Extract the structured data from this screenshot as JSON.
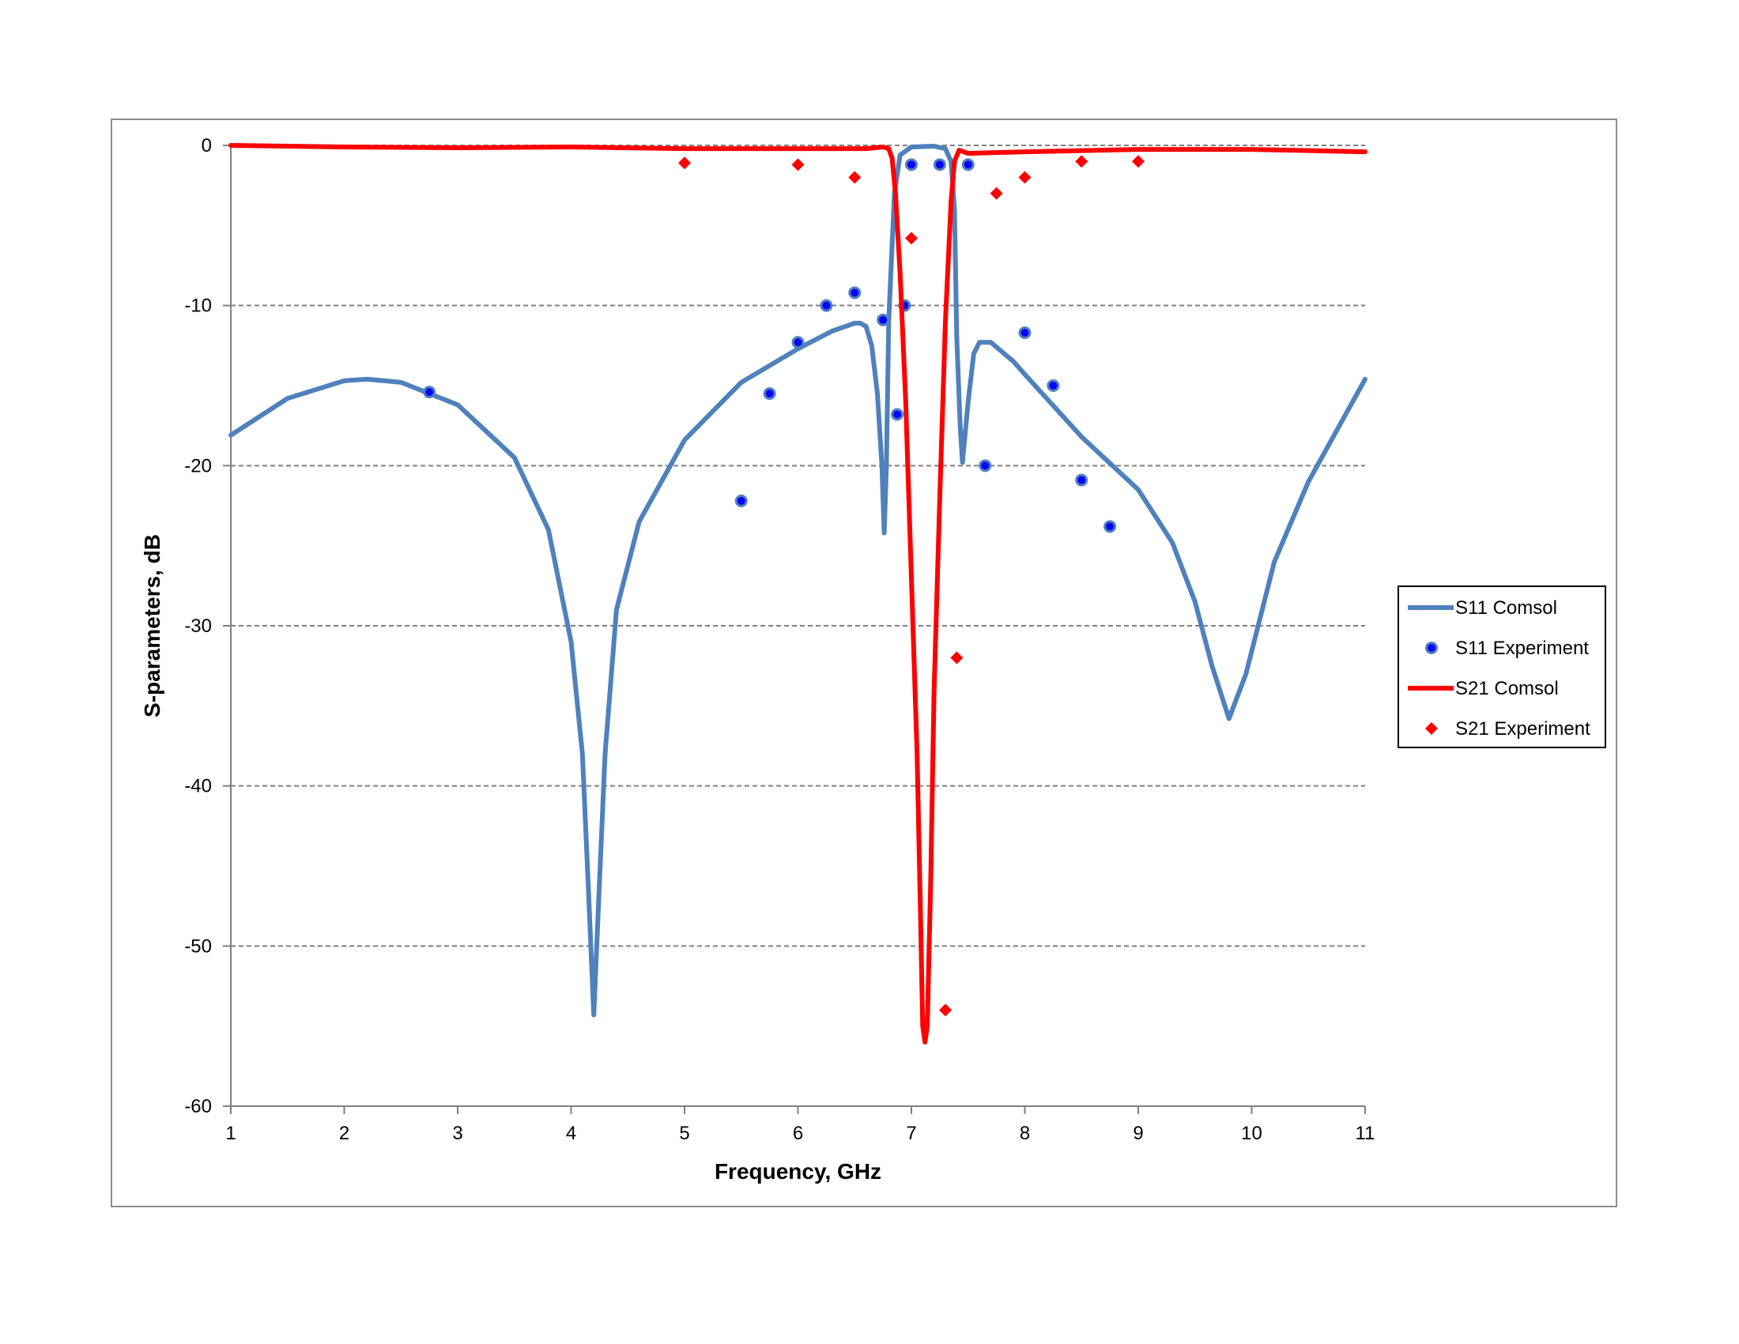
{
  "chart_data": {
    "type": "line",
    "xlabel": "Frequency, GHz",
    "ylabel": "S-parameters, dB",
    "xlim": [
      1,
      11
    ],
    "ylim": [
      -60,
      0
    ],
    "xticks": [
      1,
      2,
      3,
      4,
      5,
      6,
      7,
      8,
      9,
      10,
      11
    ],
    "yticks": [
      0,
      -10,
      -20,
      -30,
      -40,
      -50,
      -60
    ],
    "grid": "horizontal dashed",
    "legend_position": "right",
    "series": [
      {
        "name": "S11 Comsol",
        "kind": "line",
        "color": "#4f81bd",
        "points": [
          [
            1,
            -18.1
          ],
          [
            1.5,
            -15.8
          ],
          [
            2,
            -14.7
          ],
          [
            2.2,
            -14.6
          ],
          [
            2.5,
            -14.8
          ],
          [
            3,
            -16.2
          ],
          [
            3.5,
            -19.5
          ],
          [
            3.8,
            -24
          ],
          [
            4,
            -31
          ],
          [
            4.1,
            -38
          ],
          [
            4.15,
            -46
          ],
          [
            4.2,
            -54.3
          ],
          [
            4.25,
            -46
          ],
          [
            4.3,
            -38
          ],
          [
            4.4,
            -29
          ],
          [
            4.6,
            -23.5
          ],
          [
            5,
            -18.4
          ],
          [
            5.5,
            -14.8
          ],
          [
            6,
            -12.7
          ],
          [
            6.3,
            -11.6
          ],
          [
            6.5,
            -11.1
          ],
          [
            6.55,
            -11.1
          ],
          [
            6.6,
            -11.3
          ],
          [
            6.65,
            -12.5
          ],
          [
            6.7,
            -15.5
          ],
          [
            6.74,
            -20
          ],
          [
            6.76,
            -24.2
          ],
          [
            6.78,
            -20
          ],
          [
            6.8,
            -11
          ],
          [
            6.85,
            -3
          ],
          [
            6.9,
            -0.6
          ],
          [
            7,
            -0.1
          ],
          [
            7.2,
            -0.05
          ],
          [
            7.3,
            -0.2
          ],
          [
            7.35,
            -1
          ],
          [
            7.38,
            -4
          ],
          [
            7.4,
            -12
          ],
          [
            7.43,
            -17.5
          ],
          [
            7.45,
            -19.8
          ],
          [
            7.5,
            -16
          ],
          [
            7.55,
            -13
          ],
          [
            7.6,
            -12.3
          ],
          [
            7.7,
            -12.3
          ],
          [
            7.9,
            -13.5
          ],
          [
            8,
            -14.3
          ],
          [
            8.5,
            -18.2
          ],
          [
            9,
            -21.5
          ],
          [
            9.3,
            -24.8
          ],
          [
            9.5,
            -28.5
          ],
          [
            9.65,
            -32.5
          ],
          [
            9.8,
            -35.8
          ],
          [
            9.95,
            -33
          ],
          [
            10.2,
            -26
          ],
          [
            10.5,
            -21
          ],
          [
            11,
            -14.6
          ]
        ]
      },
      {
        "name": "S11 Experiment",
        "kind": "scatter",
        "marker": "circle",
        "color": "#0000ff",
        "points": [
          [
            2.75,
            -15.4
          ],
          [
            5.5,
            -22.2
          ],
          [
            5.75,
            -15.5
          ],
          [
            6,
            -12.3
          ],
          [
            6.25,
            -10
          ],
          [
            6.5,
            -9.2
          ],
          [
            6.75,
            -10.9
          ],
          [
            6.875,
            -16.8
          ],
          [
            6.94,
            -10
          ],
          [
            7,
            -1.2
          ],
          [
            7.25,
            -1.2
          ],
          [
            7.5,
            -1.2
          ],
          [
            7.65,
            -20
          ],
          [
            8,
            -11.7
          ],
          [
            8.25,
            -15
          ],
          [
            8.5,
            -20.9
          ],
          [
            8.75,
            -23.8
          ]
        ]
      },
      {
        "name": "S21 Comsol",
        "kind": "line",
        "color": "#ff0000",
        "points": [
          [
            1,
            0
          ],
          [
            2,
            -0.1
          ],
          [
            3,
            -0.15
          ],
          [
            4,
            -0.1
          ],
          [
            5,
            -0.2
          ],
          [
            6,
            -0.2
          ],
          [
            6.6,
            -0.2
          ],
          [
            6.75,
            -0.1
          ],
          [
            6.8,
            -0.2
          ],
          [
            6.83,
            -0.8
          ],
          [
            6.86,
            -3
          ],
          [
            6.9,
            -8
          ],
          [
            6.95,
            -16
          ],
          [
            7,
            -27
          ],
          [
            7.05,
            -38
          ],
          [
            7.08,
            -48
          ],
          [
            7.1,
            -55
          ],
          [
            7.12,
            -56
          ],
          [
            7.14,
            -55
          ],
          [
            7.17,
            -46
          ],
          [
            7.2,
            -34
          ],
          [
            7.25,
            -22
          ],
          [
            7.3,
            -11
          ],
          [
            7.35,
            -3.5
          ],
          [
            7.38,
            -1
          ],
          [
            7.42,
            -0.3
          ],
          [
            7.5,
            -0.5
          ],
          [
            8,
            -0.4
          ],
          [
            9,
            -0.25
          ],
          [
            10,
            -0.25
          ],
          [
            11,
            -0.4
          ]
        ]
      },
      {
        "name": "S21 Experiment",
        "kind": "scatter",
        "marker": "diamond",
        "color": "#ff0000",
        "points": [
          [
            5,
            -1.1
          ],
          [
            6,
            -1.2
          ],
          [
            6.5,
            -2
          ],
          [
            7,
            -5.8
          ],
          [
            7.3,
            -54
          ],
          [
            7.4,
            -32
          ],
          [
            7.75,
            -3
          ],
          [
            8,
            -2
          ],
          [
            8.5,
            -1
          ],
          [
            9,
            -1
          ]
        ]
      }
    ]
  }
}
